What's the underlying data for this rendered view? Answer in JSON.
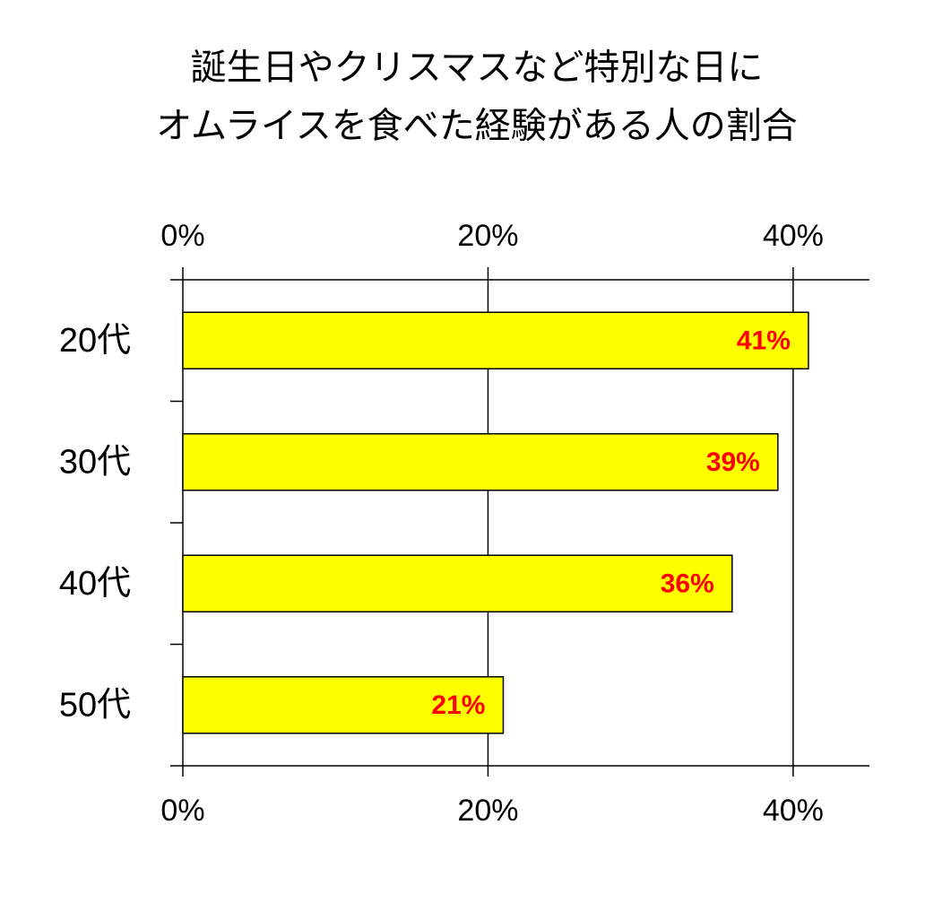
{
  "chart_data": {
    "type": "barh",
    "title": [
      "誕生日やクリスマスなど特別な日に",
      "オムライスを食べた経験がある人の割合"
    ],
    "categories": [
      "20代",
      "30代",
      "40代",
      "50代"
    ],
    "values": [
      41,
      39,
      36,
      21
    ],
    "value_labels": [
      "41%",
      "39%",
      "36%",
      "21%"
    ],
    "color": "#ffff00",
    "label_color": "#ff0000",
    "xlim": [
      0,
      45
    ],
    "xticks": [
      {
        "value": 0,
        "label": "0%"
      },
      {
        "value": 20,
        "label": "20%"
      },
      {
        "value": 40,
        "label": "40%"
      }
    ],
    "grid": true
  }
}
